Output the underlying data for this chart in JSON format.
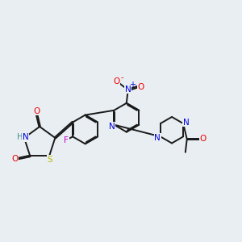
{
  "bg_color": "#e8eef2",
  "bond_color": "#1a1a1a",
  "bond_width": 1.4,
  "dbo": 0.018,
  "atom_colors": {
    "O": "#ee0000",
    "N": "#0000dd",
    "S": "#bbbb00",
    "F": "#cc00cc",
    "H": "#3a8a8a",
    "C": "#1a1a1a"
  },
  "fs": 7.5
}
